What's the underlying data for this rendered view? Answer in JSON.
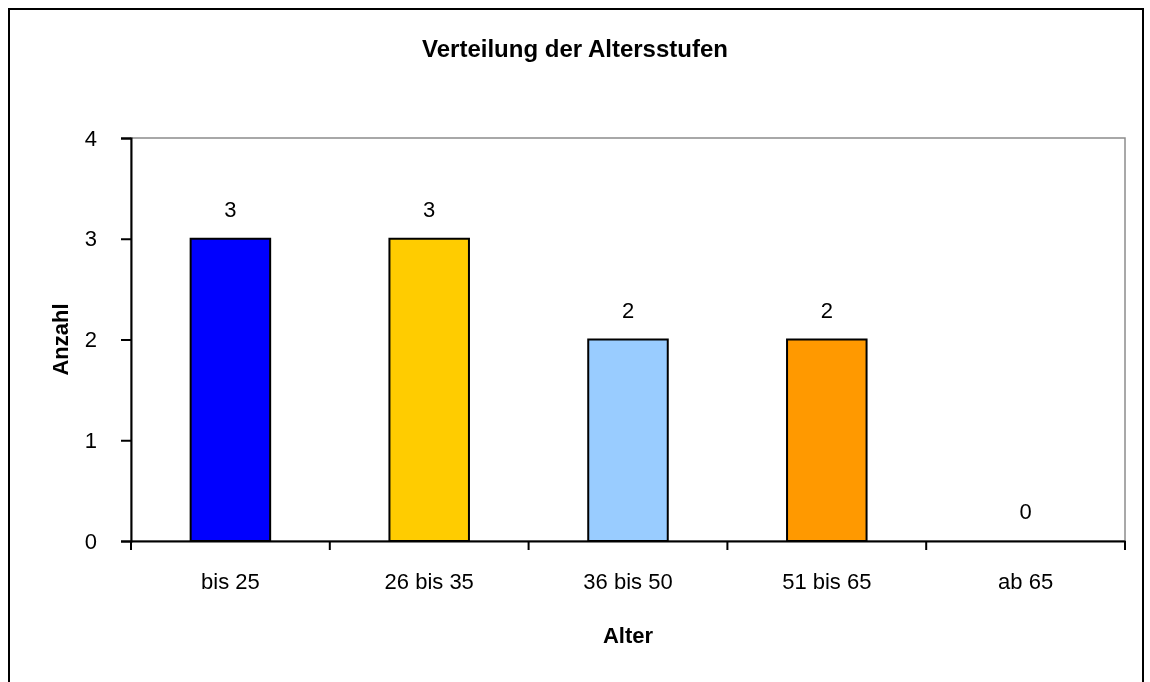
{
  "chart_data": {
    "type": "bar",
    "title": "Verteilung der Altersstufen",
    "xlabel": "Alter",
    "ylabel": "Anzahl",
    "categories": [
      "bis 25",
      "26 bis 35",
      "36 bis 50",
      "51 bis 65",
      "ab 65"
    ],
    "values": [
      3,
      3,
      2,
      2,
      0
    ],
    "colors": [
      "#0000ff",
      "#ffcc00",
      "#99ccff",
      "#ff9900",
      "#993366"
    ],
    "ylim": [
      0,
      4
    ],
    "yticks": [
      0,
      1,
      2,
      3,
      4
    ],
    "data_labels": true
  }
}
